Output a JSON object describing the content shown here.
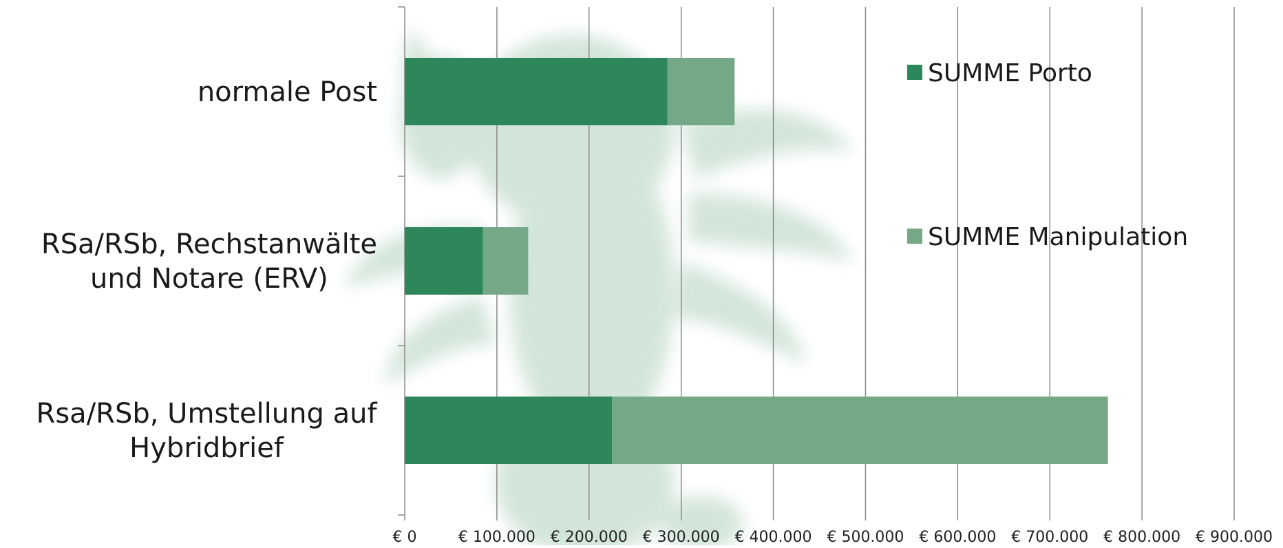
{
  "chart_data": {
    "type": "bar",
    "orientation": "horizontal",
    "stacked": true,
    "categories": [
      [
        "normale Post"
      ],
      [
        "RSa/RSb, Rechstanwälte",
        "und Notare (ERV)"
      ],
      [
        "Rsa/RSb, Umstellung auf",
        "Hybridbrief"
      ]
    ],
    "series": [
      {
        "name": "SUMME Porto",
        "color": "#2e875a",
        "values": [
          285000,
          85000,
          225000
        ]
      },
      {
        "name": "SUMME Manipulation",
        "color": "#74a887",
        "values": [
          73000,
          49000,
          538000
        ]
      }
    ],
    "x_ticks": [
      "€ 0",
      "€ 100.000",
      "€ 200.000",
      "€ 300.000",
      "€ 400.000",
      "€ 500.000",
      "€ 600.000",
      "€ 700.000",
      "€ 800.000",
      "€ 900.000"
    ],
    "xlim": [
      0,
      900000
    ],
    "grid": true,
    "legend_position": "right",
    "title": "",
    "xlabel": "",
    "ylabel": "",
    "watermark": "eagle-emblem"
  }
}
